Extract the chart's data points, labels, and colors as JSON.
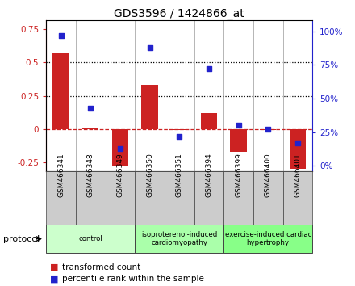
{
  "title": "GDS3596 / 1424866_at",
  "samples": [
    "GSM466341",
    "GSM466348",
    "GSM466349",
    "GSM466350",
    "GSM466351",
    "GSM466394",
    "GSM466399",
    "GSM466400",
    "GSM466401"
  ],
  "bar_values": [
    0.57,
    0.01,
    -0.28,
    0.33,
    -0.01,
    0.12,
    -0.17,
    -0.01,
    -0.3
  ],
  "dot_values": [
    97,
    43,
    13,
    88,
    22,
    72,
    30,
    27,
    17
  ],
  "bar_color": "#cc2222",
  "dot_color": "#2222cc",
  "ylim_left": [
    -0.32,
    0.82
  ],
  "ylim_right": [
    -4.27,
    108.27
  ],
  "yticks_left": [
    -0.25,
    0.0,
    0.25,
    0.5,
    0.75
  ],
  "yticks_right": [
    0,
    25,
    50,
    75,
    100
  ],
  "ytick_labels_left": [
    "-0.25",
    "0",
    "0.25",
    "0.5",
    "0.75"
  ],
  "ytick_labels_right": [
    "0%",
    "25%",
    "50%",
    "75%",
    "100%"
  ],
  "hline_dotted": [
    0.25,
    0.5
  ],
  "hline_dashed": 0.0,
  "groups": [
    {
      "label": "control",
      "start": 0,
      "end": 2,
      "color": "#ccffcc"
    },
    {
      "label": "isoproterenol-induced\ncardiomyopathy",
      "start": 3,
      "end": 5,
      "color": "#aaffaa"
    },
    {
      "label": "exercise-induced cardiac\nhypertrophy",
      "start": 6,
      "end": 8,
      "color": "#88ff88"
    }
  ],
  "protocol_label": "protocol",
  "legend_bar_label": "transformed count",
  "legend_dot_label": "percentile rank within the sample",
  "background_color": "#ffffff",
  "tick_area_color": "#cccccc",
  "group_border_color": "#444444"
}
